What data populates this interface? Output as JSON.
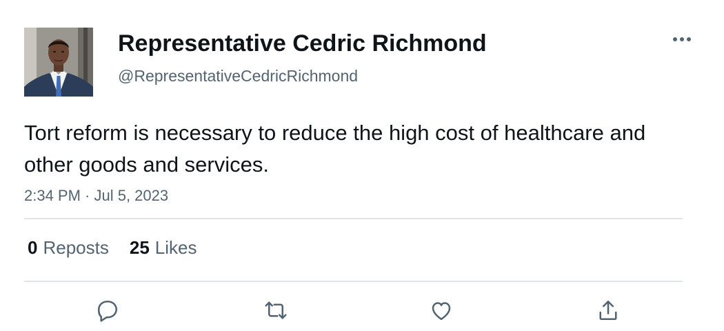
{
  "author": {
    "display_name": "Representative Cedric Richmond",
    "handle": "@RepresentativeCedricRichmond"
  },
  "tweet": {
    "text": "Tort reform is necessary to reduce the high cost of healthcare and other goods and services.",
    "timestamp": "2:34 PM · Jul 5, 2023"
  },
  "stats": {
    "reposts_count": "0",
    "reposts_label": "Reposts",
    "likes_count": "25",
    "likes_label": "Likes"
  },
  "icons": {
    "more": "more-horizontal-icon",
    "reply": "reply-icon",
    "repost": "repost-icon",
    "like": "like-icon",
    "share": "share-icon"
  },
  "colors": {
    "text_primary": "#0f1419",
    "text_secondary": "#536471",
    "divider": "#e1e5e8"
  }
}
